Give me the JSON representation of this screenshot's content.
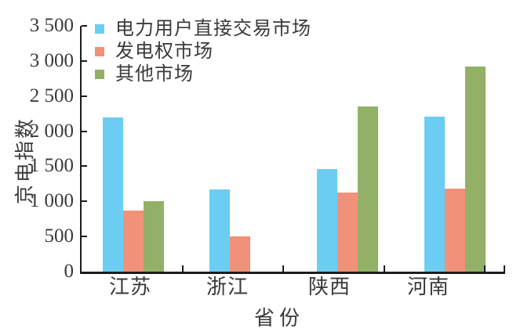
{
  "chart_data": {
    "type": "bar",
    "title": "",
    "xlabel": "省份",
    "ylabel": "京电指数",
    "categories": [
      "江苏",
      "浙江",
      "陕西",
      "河南"
    ],
    "series": [
      {
        "name": "电力用户直接交易市场",
        "color": "#6bcdf2",
        "values": [
          2200,
          1170,
          1460,
          2210
        ]
      },
      {
        "name": "发电权市场",
        "color": "#f0917a",
        "values": [
          870,
          500,
          1130,
          1180
        ]
      },
      {
        "name": "其他市场",
        "color": "#92b066",
        "values": [
          1000,
          0,
          2350,
          2920
        ]
      }
    ],
    "ylim": [
      0,
      3500
    ],
    "ytick_step": 500,
    "ytick_labels": [
      "0",
      "500",
      "1 000",
      "1 500",
      "2 000",
      "2 500",
      "3 000",
      "3 500"
    ],
    "legend_position": "top-left-inside",
    "grid": false,
    "axis_color": "#1c1c1c",
    "text_color": "#3a3a3a",
    "background_color": "#ffffff"
  }
}
